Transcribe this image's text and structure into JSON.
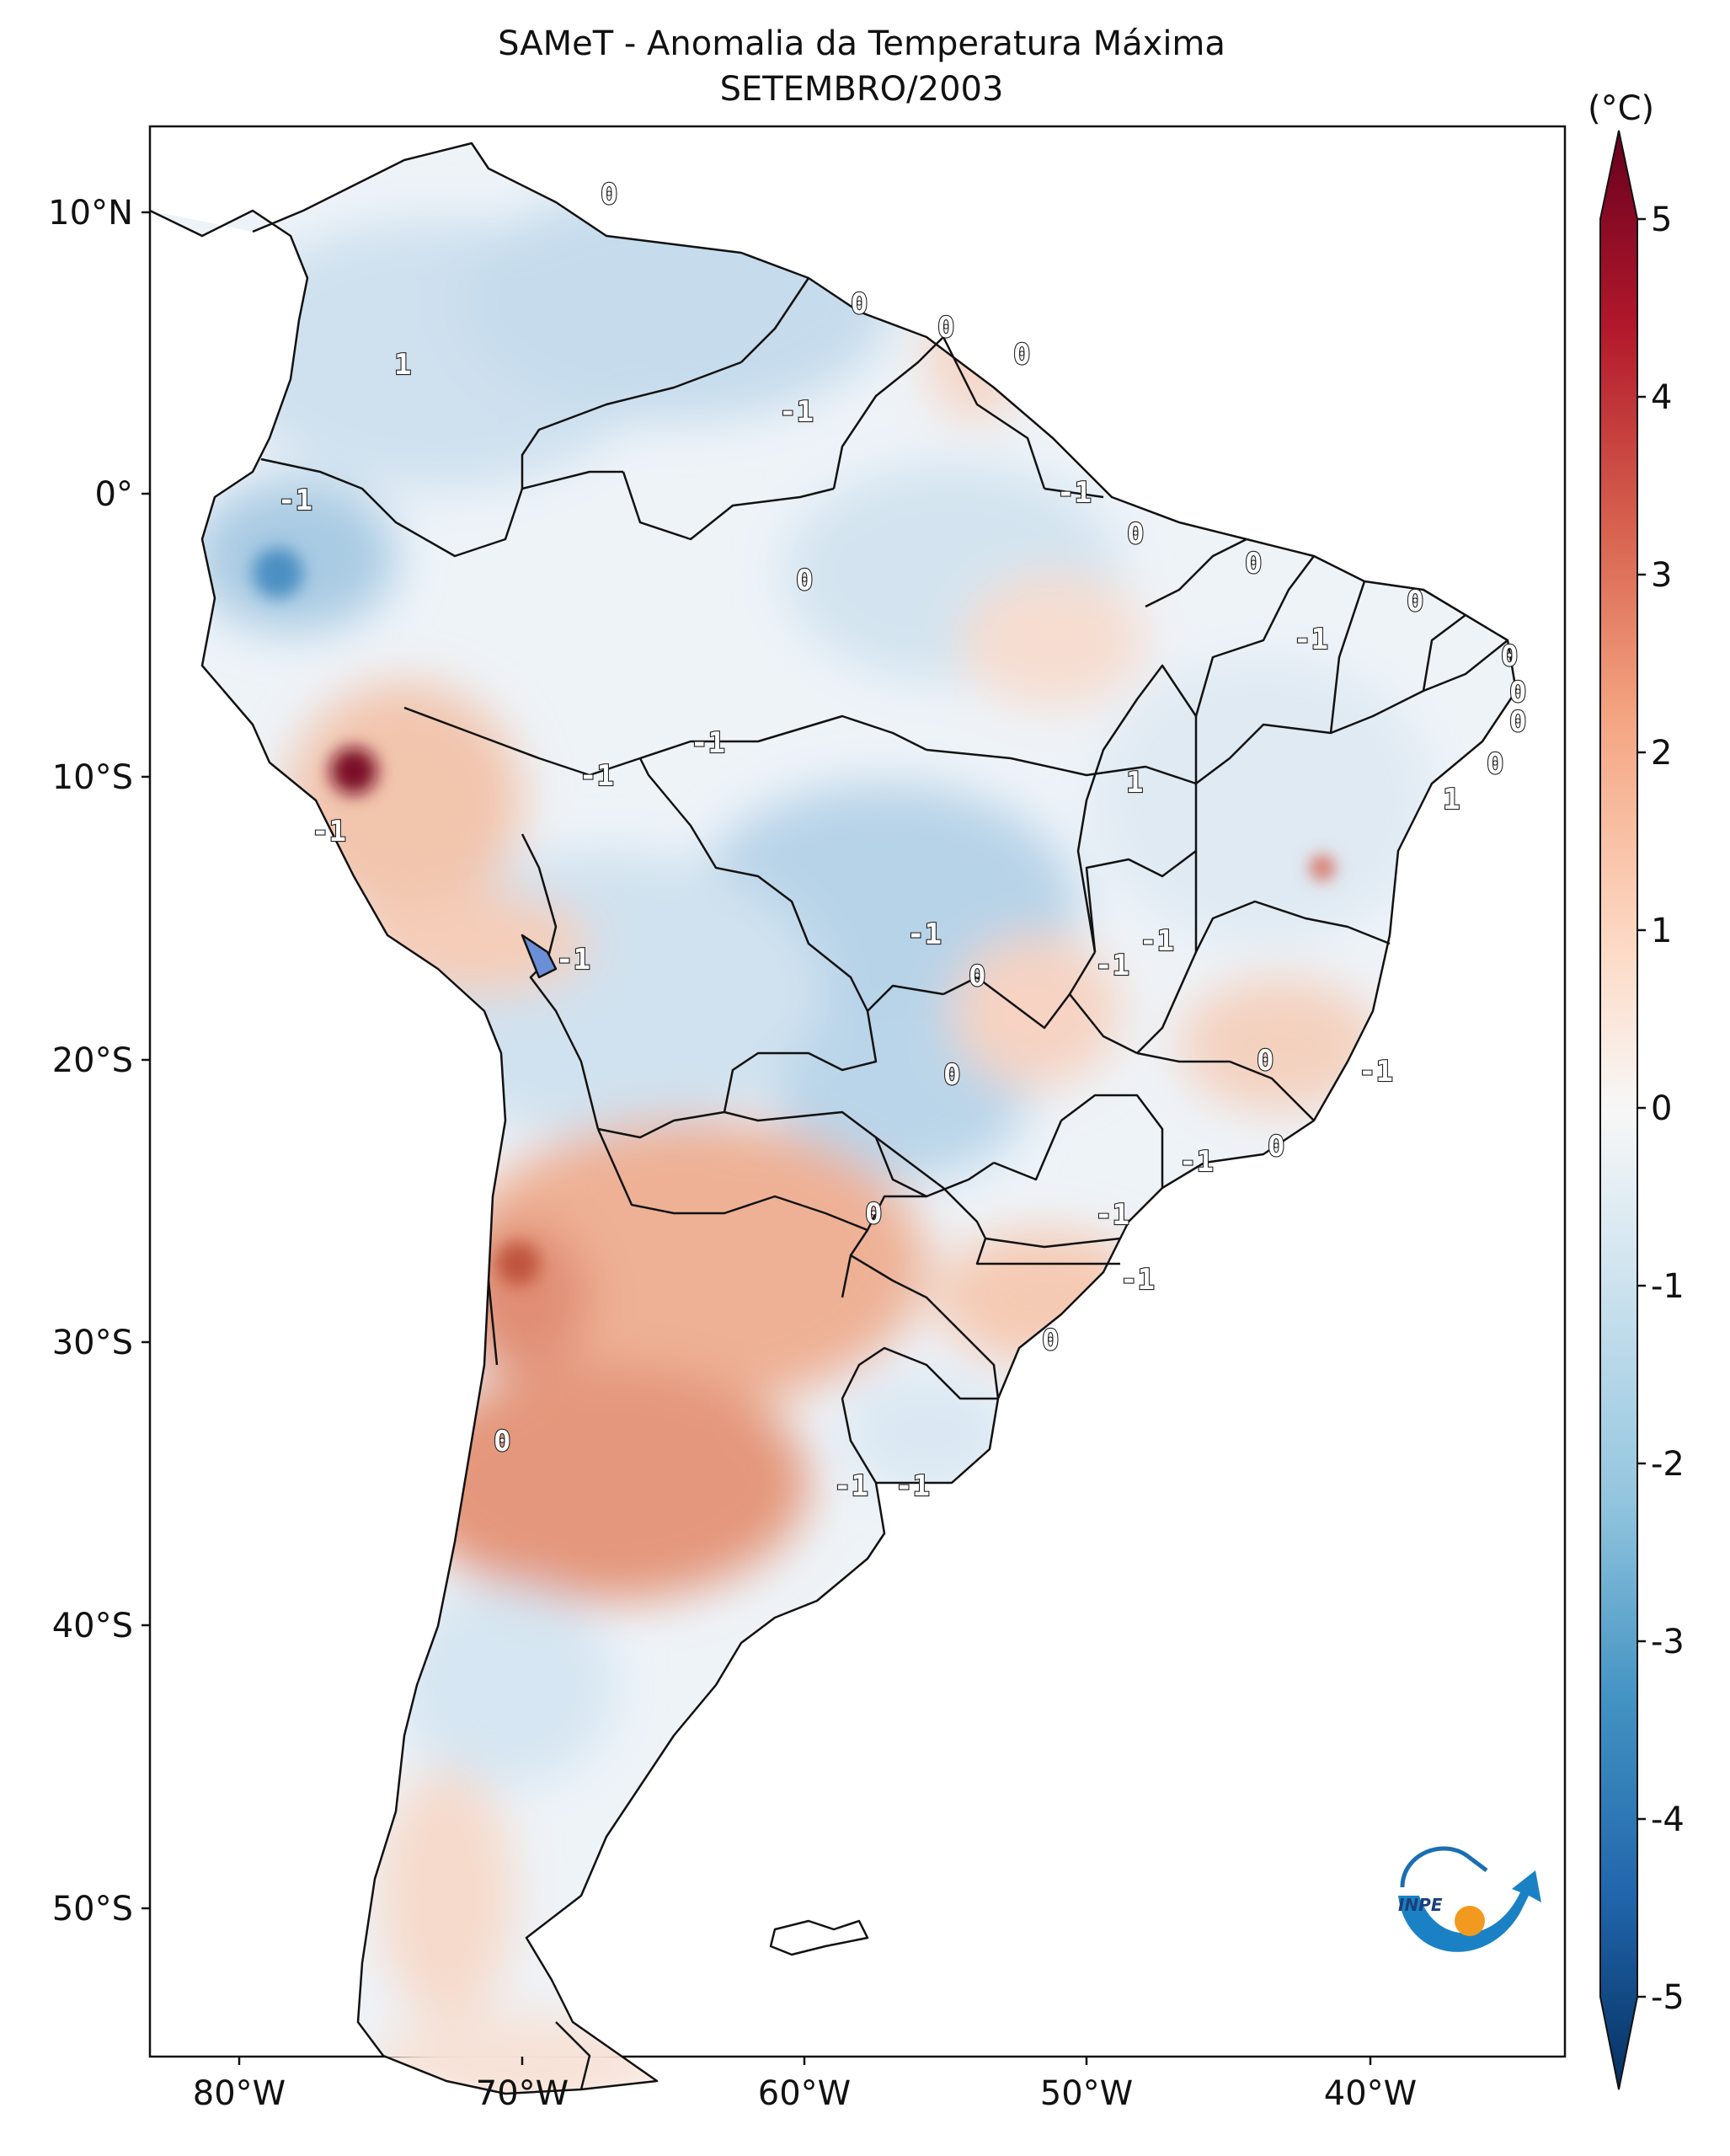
{
  "title": "SAMeT - Anomalia da Temperatura Máxima",
  "subtitle": "SETEMBRO/2003",
  "colorbar": {
    "unit": "(°C)",
    "ticks": [
      "5",
      "4",
      "3",
      "2",
      "1",
      "0",
      "-1",
      "-2",
      "-3",
      "-4",
      "-5"
    ],
    "range": [
      -5,
      5
    ],
    "colors": [
      "#053061",
      "#2166ac",
      "#4393c3",
      "#92c5de",
      "#d1e5f0",
      "#f7f7f7",
      "#fddbc7",
      "#f4a582",
      "#d6604d",
      "#b2182b",
      "#67001f"
    ]
  },
  "axes": {
    "lat_ticks": [
      "10°N",
      "0°",
      "10°S",
      "20°S",
      "30°S",
      "40°S",
      "50°S"
    ],
    "lon_ticks": [
      "80°W",
      "70°W",
      "60°W",
      "50°W",
      "40°W"
    ]
  },
  "contour_labels": [
    "0",
    "0",
    "0",
    "0",
    "1",
    "-1",
    "-1",
    "-1",
    "0",
    "0",
    "0",
    "-1",
    "0",
    "0",
    "0",
    "0",
    "-1",
    "-1",
    "1",
    "1",
    "0",
    "-1",
    "-1",
    "-1",
    "-1",
    "-1",
    "-1",
    "0",
    "0",
    "-1",
    "-1",
    "0",
    "0",
    "-1",
    "0",
    "0",
    "-1",
    "-1",
    "0"
  ],
  "logo": {
    "text": "INPE"
  }
}
